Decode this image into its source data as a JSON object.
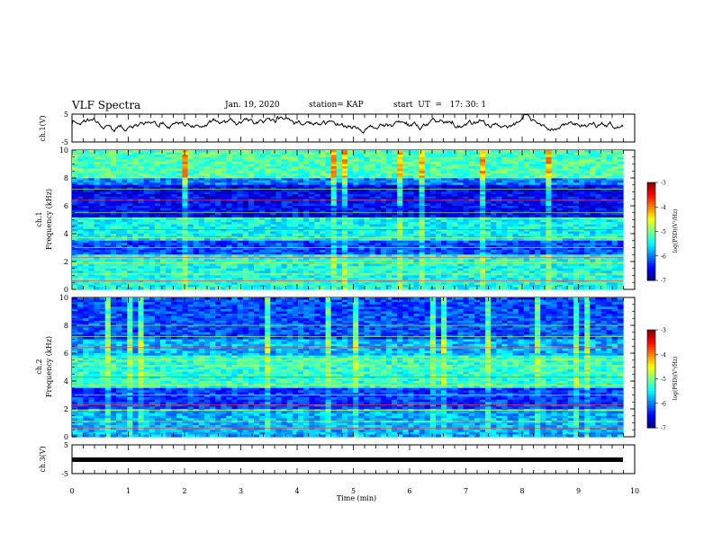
{
  "header": {
    "title": "VLF Spectra",
    "date": "Jan. 19, 2020",
    "station": "station= KAP",
    "start": "start  UT  =   17: 30: 1"
  },
  "chart_data": [
    {
      "type": "line",
      "panel": "ch1-waveform",
      "ylabel": "ch.1(V)",
      "ylim": [
        -5,
        5
      ],
      "y_ticks": [
        "5",
        "-5"
      ],
      "x_range_min": [
        0,
        10
      ],
      "note_series": "noisy waveform mostly between -2 and 5 V"
    },
    {
      "type": "heatmap",
      "panel": "ch1-spectrogram",
      "ylabel_top": "ch.1",
      "ylabel": "Frequency  (kHz)",
      "ylim": [
        0,
        10
      ],
      "y_ticks": [
        "0",
        "2",
        "4",
        "6",
        "8",
        "10"
      ],
      "colorbar": {
        "label": "log(PSD)(V²/Hz)",
        "range": [
          -7,
          -3
        ],
        "ticks": [
          "-3",
          "-4",
          "-5",
          "-6",
          "-7"
        ]
      }
    },
    {
      "type": "heatmap",
      "panel": "ch2-spectrogram",
      "ylabel_top": "ch.2",
      "ylabel": "Frequency  (kHz)",
      "ylim": [
        0,
        10
      ],
      "y_ticks": [
        "0",
        "2",
        "4",
        "6",
        "8",
        "10"
      ],
      "colorbar": {
        "label": "log(PSD)(V²/Hz)",
        "range": [
          -7,
          -3
        ],
        "ticks": [
          "-3",
          "-4",
          "-5",
          "-6",
          "-7"
        ]
      }
    },
    {
      "type": "line",
      "panel": "ch3-waveform",
      "ylabel": "ch.3(V)",
      "ylim": [
        -5,
        5
      ],
      "y_ticks": [
        "5",
        "-5"
      ],
      "constant_value": 0,
      "x_range_min": [
        0,
        10
      ]
    }
  ],
  "xaxis": {
    "label": "Time  (min)",
    "ticks": [
      "0",
      "1",
      "2",
      "3",
      "4",
      "5",
      "6",
      "7",
      "8",
      "9",
      "10"
    ],
    "range": [
      0,
      10
    ]
  },
  "colors": {
    "bar_low": "#000080",
    "bar_high": "#ff0000",
    "trace": "#000000"
  }
}
